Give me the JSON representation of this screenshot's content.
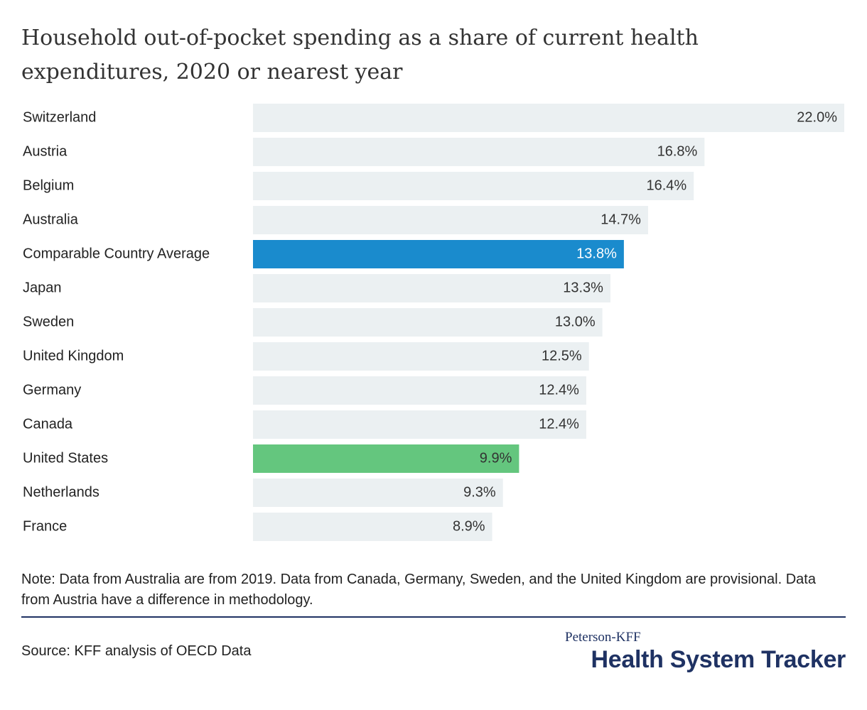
{
  "chart_data": {
    "type": "bar",
    "orientation": "horizontal",
    "title": "Household out-of-pocket spending as a share of current health expenditures, 2020 or nearest year",
    "categories": [
      "Switzerland",
      "Austria",
      "Belgium",
      "Australia",
      "Comparable Country Average",
      "Japan",
      "Sweden",
      "United Kingdom",
      "Germany",
      "Canada",
      "United States",
      "Netherlands",
      "France"
    ],
    "values": [
      22.0,
      16.8,
      16.4,
      14.7,
      13.8,
      13.3,
      13.0,
      12.5,
      12.4,
      12.4,
      9.9,
      9.3,
      8.9
    ],
    "value_labels": [
      "22.0%",
      "16.8%",
      "16.4%",
      "14.7%",
      "13.8%",
      "13.3%",
      "13.0%",
      "12.5%",
      "12.4%",
      "12.4%",
      "9.9%",
      "9.3%",
      "8.9%"
    ],
    "colors": [
      "#ebf0f2",
      "#ebf0f2",
      "#ebf0f2",
      "#ebf0f2",
      "#1a8bcd",
      "#ebf0f2",
      "#ebf0f2",
      "#ebf0f2",
      "#ebf0f2",
      "#ebf0f2",
      "#64c67e",
      "#ebf0f2",
      "#ebf0f2"
    ],
    "label_colors": [
      "#333333",
      "#333333",
      "#333333",
      "#333333",
      "#ffffff",
      "#333333",
      "#333333",
      "#333333",
      "#333333",
      "#333333",
      "#333333",
      "#333333",
      "#333333"
    ],
    "note": "Note: Data from Australia are from 2019. Data from Canada, Germany, Sweden, and the United Kingdom are provisional. Data from Austria have a difference in methodology.",
    "source": "Source: KFF analysis of OECD Data",
    "brand_small": "Peterson-KFF",
    "brand_large": "Health System Tracker"
  }
}
